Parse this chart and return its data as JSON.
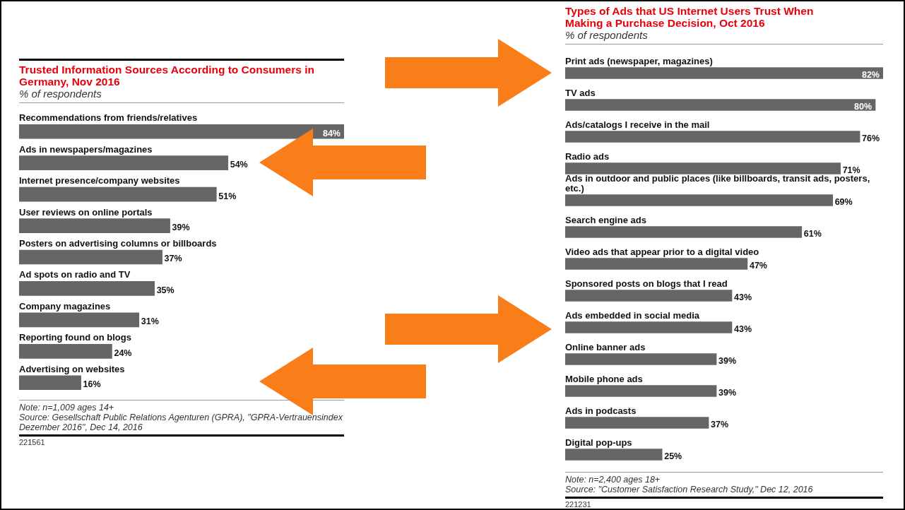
{
  "chart_data": [
    {
      "type": "bar",
      "orientation": "horizontal",
      "title": "Trusted Information Sources According to Consumers in Germany, Nov 2016",
      "subtitle": "% of respondents",
      "categories": [
        "Recommendations from friends/relatives",
        "Ads in newspapers/magazines",
        "Internet presence/company websites",
        "User reviews on online portals",
        "Posters on advertising columns or billboards",
        "Ad spots on radio and TV",
        "Company magazines",
        "Reporting found on blogs",
        "Advertising on websites"
      ],
      "values": [
        84,
        54,
        51,
        39,
        37,
        35,
        31,
        24,
        16
      ],
      "value_labels": [
        "84%",
        "54%",
        "51%",
        "39%",
        "37%",
        "35%",
        "31%",
        "24%",
        "16%"
      ],
      "color": "#666666",
      "annotations": [
        "Note: n=1,009 ages 14+",
        "Source: Gesellschaft Public Relations Agenturen (GPRA), \"GPRA-Vertrauensindex Dezember 2016\", Dec 14, 2016",
        "221561"
      ]
    },
    {
      "type": "bar",
      "orientation": "horizontal",
      "title": "Types of Ads that US Internet Users Trust When Making a Purchase Decision, Oct 2016",
      "subtitle": "% of respondents",
      "categories": [
        "Print ads (newspaper, magazines)",
        "TV ads",
        "Ads/catalogs I receive in the mail",
        "Radio ads",
        "Ads in outdoor and public places (like billboards, transit ads, posters, etc.)",
        "Search engine ads",
        "Video ads that appear prior to a digital video",
        "Sponsored posts on blogs that I read",
        "Ads embedded in social media",
        "Online banner ads",
        "Mobile phone ads",
        "Ads in podcasts",
        "Digital pop-ups"
      ],
      "values": [
        82,
        80,
        76,
        71,
        69,
        61,
        47,
        43,
        43,
        39,
        39,
        37,
        25
      ],
      "value_labels": [
        "82%",
        "80%",
        "76%",
        "71%",
        "69%",
        "61%",
        "47%",
        "43%",
        "43%",
        "39%",
        "39%",
        "37%",
        "25%"
      ],
      "color": "#666666",
      "annotations": [
        "Note: n=2,400 ages 18+",
        "Source: \"Customer Satisfaction Research Study,\" Dec 12, 2016",
        "221231"
      ]
    }
  ]
}
